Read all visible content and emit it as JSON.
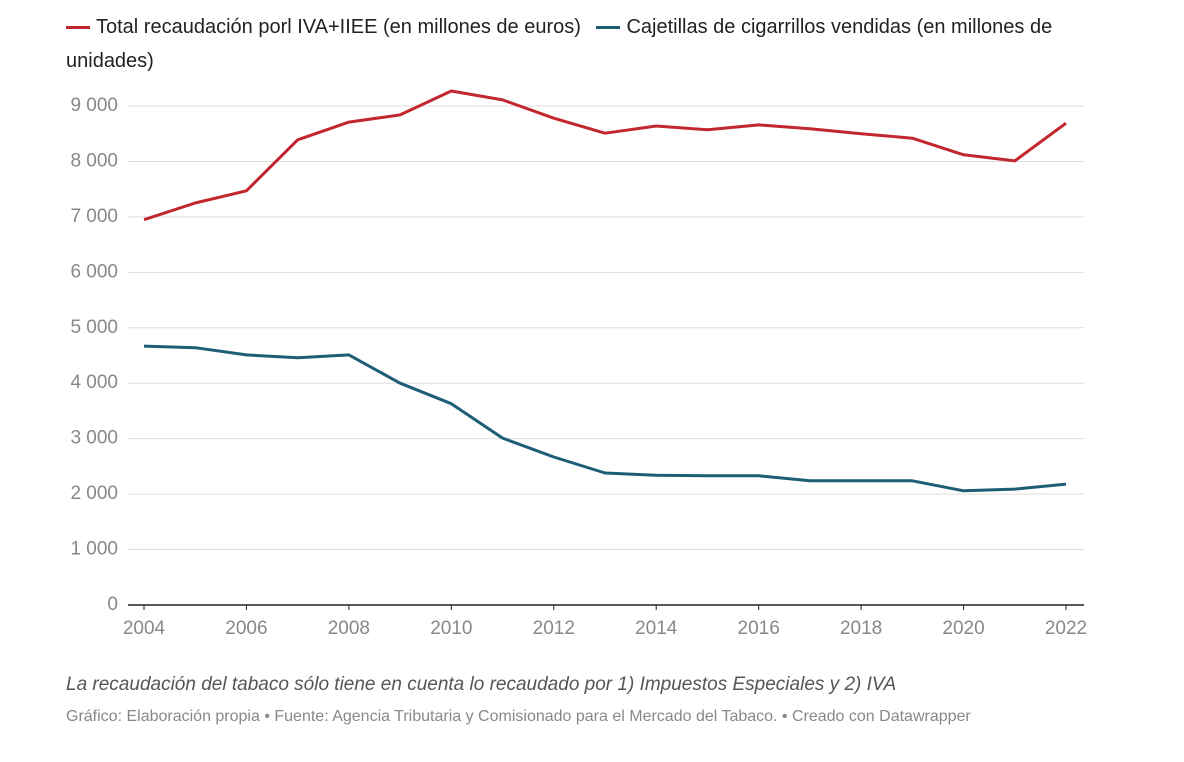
{
  "chart_data": {
    "type": "line",
    "caption": "La recaudación del tabaco sólo tiene en cuenta lo recaudado por 1) Impuestos Especiales y 2) IVA",
    "source": "Gráfico: Elaboración propia • Fuente: Agencia Tributaria y Comisionado para el Mercado del Tabaco. • Creado con Datawrapper",
    "x": [
      2004,
      2005,
      2006,
      2007,
      2008,
      2009,
      2010,
      2011,
      2012,
      2013,
      2014,
      2015,
      2016,
      2017,
      2018,
      2019,
      2020,
      2021,
      2022
    ],
    "xlim": [
      2004,
      2022
    ],
    "xticks": [
      2004,
      2006,
      2008,
      2010,
      2012,
      2014,
      2016,
      2018,
      2020,
      2022
    ],
    "ylim": [
      0,
      9000
    ],
    "yticks": [
      0,
      {
        "value": 1000,
        "label": "1 000"
      },
      {
        "value": 2000,
        "label": "2 000"
      },
      {
        "value": 3000,
        "label": "3 000"
      },
      {
        "value": 4000,
        "label": "4 000"
      },
      {
        "value": 5000,
        "label": "5 000"
      },
      {
        "value": 6000,
        "label": "6 000"
      },
      {
        "value": 7000,
        "label": "7 000"
      },
      {
        "value": 8000,
        "label": "8 000"
      },
      {
        "value": 9000,
        "label": "9 000"
      }
    ],
    "grid": true,
    "series": [
      {
        "name": "Total recaudación porl IVA+IIEE (en millones de euros)",
        "color": "#c1272d",
        "values": [
          6950,
          7250,
          7470,
          8390,
          8710,
          8840,
          9270,
          9110,
          8780,
          8510,
          8640,
          8570,
          8660,
          8590,
          8500,
          8420,
          8120,
          8010,
          8690
        ]
      },
      {
        "name": "Cajetillas de cigarrillos vendidas (en millones de unidades)",
        "color": "#1d5e76",
        "values": [
          4670,
          4640,
          4510,
          4460,
          4510,
          4000,
          3630,
          3010,
          2670,
          2380,
          2340,
          2330,
          2330,
          2240,
          2240,
          2240,
          2060,
          2090,
          2180
        ]
      }
    ]
  }
}
